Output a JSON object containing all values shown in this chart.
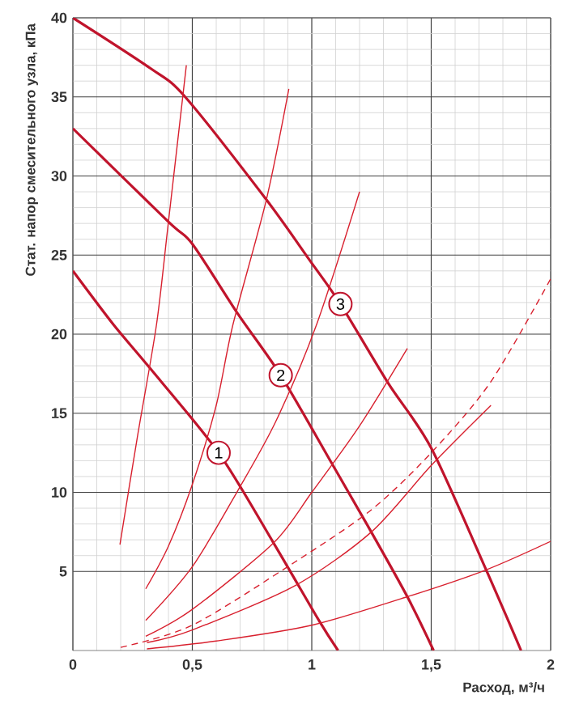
{
  "chart_data": {
    "type": "line",
    "xlabel": "Расход, м³/ч",
    "ylabel": "Стат. напор смесительного узла, кПа",
    "xlim": [
      0,
      2
    ],
    "ylim": [
      0,
      40
    ],
    "xticks": [
      0,
      {
        "value": 0.5,
        "label": "0,5"
      },
      1,
      {
        "value": 1.5,
        "label": "1,5"
      },
      2
    ],
    "yticks": [
      5,
      10,
      15,
      20,
      25,
      30,
      35,
      40
    ],
    "grid": true,
    "marker": "none",
    "series": [
      {
        "color": "#c0142c",
        "x": [
          0,
          0.17,
          0.32,
          0.61,
          0.84,
          1.03,
          1.11
        ],
        "values": [
          24,
          20.6,
          17.9,
          12.5,
          6.8,
          1.9,
          0
        ]
      },
      {
        "color": "#c0142c",
        "x": [
          0,
          0.4,
          0.5,
          0.69,
          0.87,
          1.085,
          1.23,
          1.4,
          1.51
        ],
        "values": [
          33,
          27.1,
          25.7,
          21.3,
          17.4,
          11.8,
          8.0,
          3.4,
          0
        ]
      },
      {
        "color": "#c0142c",
        "x": [
          0,
          0.325,
          0.47,
          0.81,
          0.99,
          1.12,
          1.32,
          1.5,
          1.73,
          1.876
        ],
        "values": [
          40,
          36.8,
          35,
          28.5,
          24.7,
          21.9,
          16.9,
          12.8,
          5.1,
          0
        ]
      },
      {
        "color": "#d8202e",
        "x": [
          0.197,
          0.27,
          0.35,
          0.4,
          0.475
        ],
        "values": [
          6.7,
          13.5,
          20.6,
          27.1,
          37.0
        ]
      },
      {
        "color": "#d8202e",
        "x": [
          0.305,
          0.4,
          0.5,
          0.6,
          0.67,
          0.81,
          0.904
        ],
        "values": [
          3.9,
          6.6,
          10.5,
          15.5,
          20.6,
          28.5,
          35.5
        ]
      },
      {
        "color": "#d8202e",
        "x": [
          0.305,
          0.5,
          0.69,
          0.85,
          1.02,
          1.2
        ],
        "values": [
          1.9,
          5.3,
          10.1,
          14.5,
          20.6,
          29.0
        ]
      },
      {
        "color": "#d8202e",
        "x": [
          0.305,
          0.5,
          0.84,
          1.0,
          1.2,
          1.4
        ],
        "values": [
          0.9,
          2.6,
          6.8,
          10.0,
          14.2,
          19.1
        ]
      },
      {
        "color": "#d8202e",
        "line_style": "dashed",
        "x": [
          0.2,
          0.5,
          0.93,
          1.25,
          1.5,
          1.75,
          2.0
        ],
        "values": [
          0.2,
          1.6,
          5.6,
          8.9,
          12.5,
          17.0,
          23.5
        ]
      },
      {
        "color": "#d8202e",
        "x": [
          0.31,
          0.5,
          0.93,
          1.25,
          1.5,
          1.75
        ],
        "values": [
          0.5,
          1.3,
          4.1,
          7.5,
          11.7,
          15.5
        ]
      },
      {
        "color": "#d8202e",
        "x": [
          0.31,
          0.6,
          1.0,
          1.4,
          1.73,
          2.0
        ],
        "values": [
          0.1,
          0.6,
          1.6,
          3.4,
          5.1,
          6.9
        ]
      }
    ],
    "annotations": [
      {
        "text": "1",
        "x": 0.61,
        "y": 12.5
      },
      {
        "text": "2",
        "x": 0.87,
        "y": 17.4
      },
      {
        "text": "3",
        "x": 1.12,
        "y": 21.9
      }
    ]
  }
}
